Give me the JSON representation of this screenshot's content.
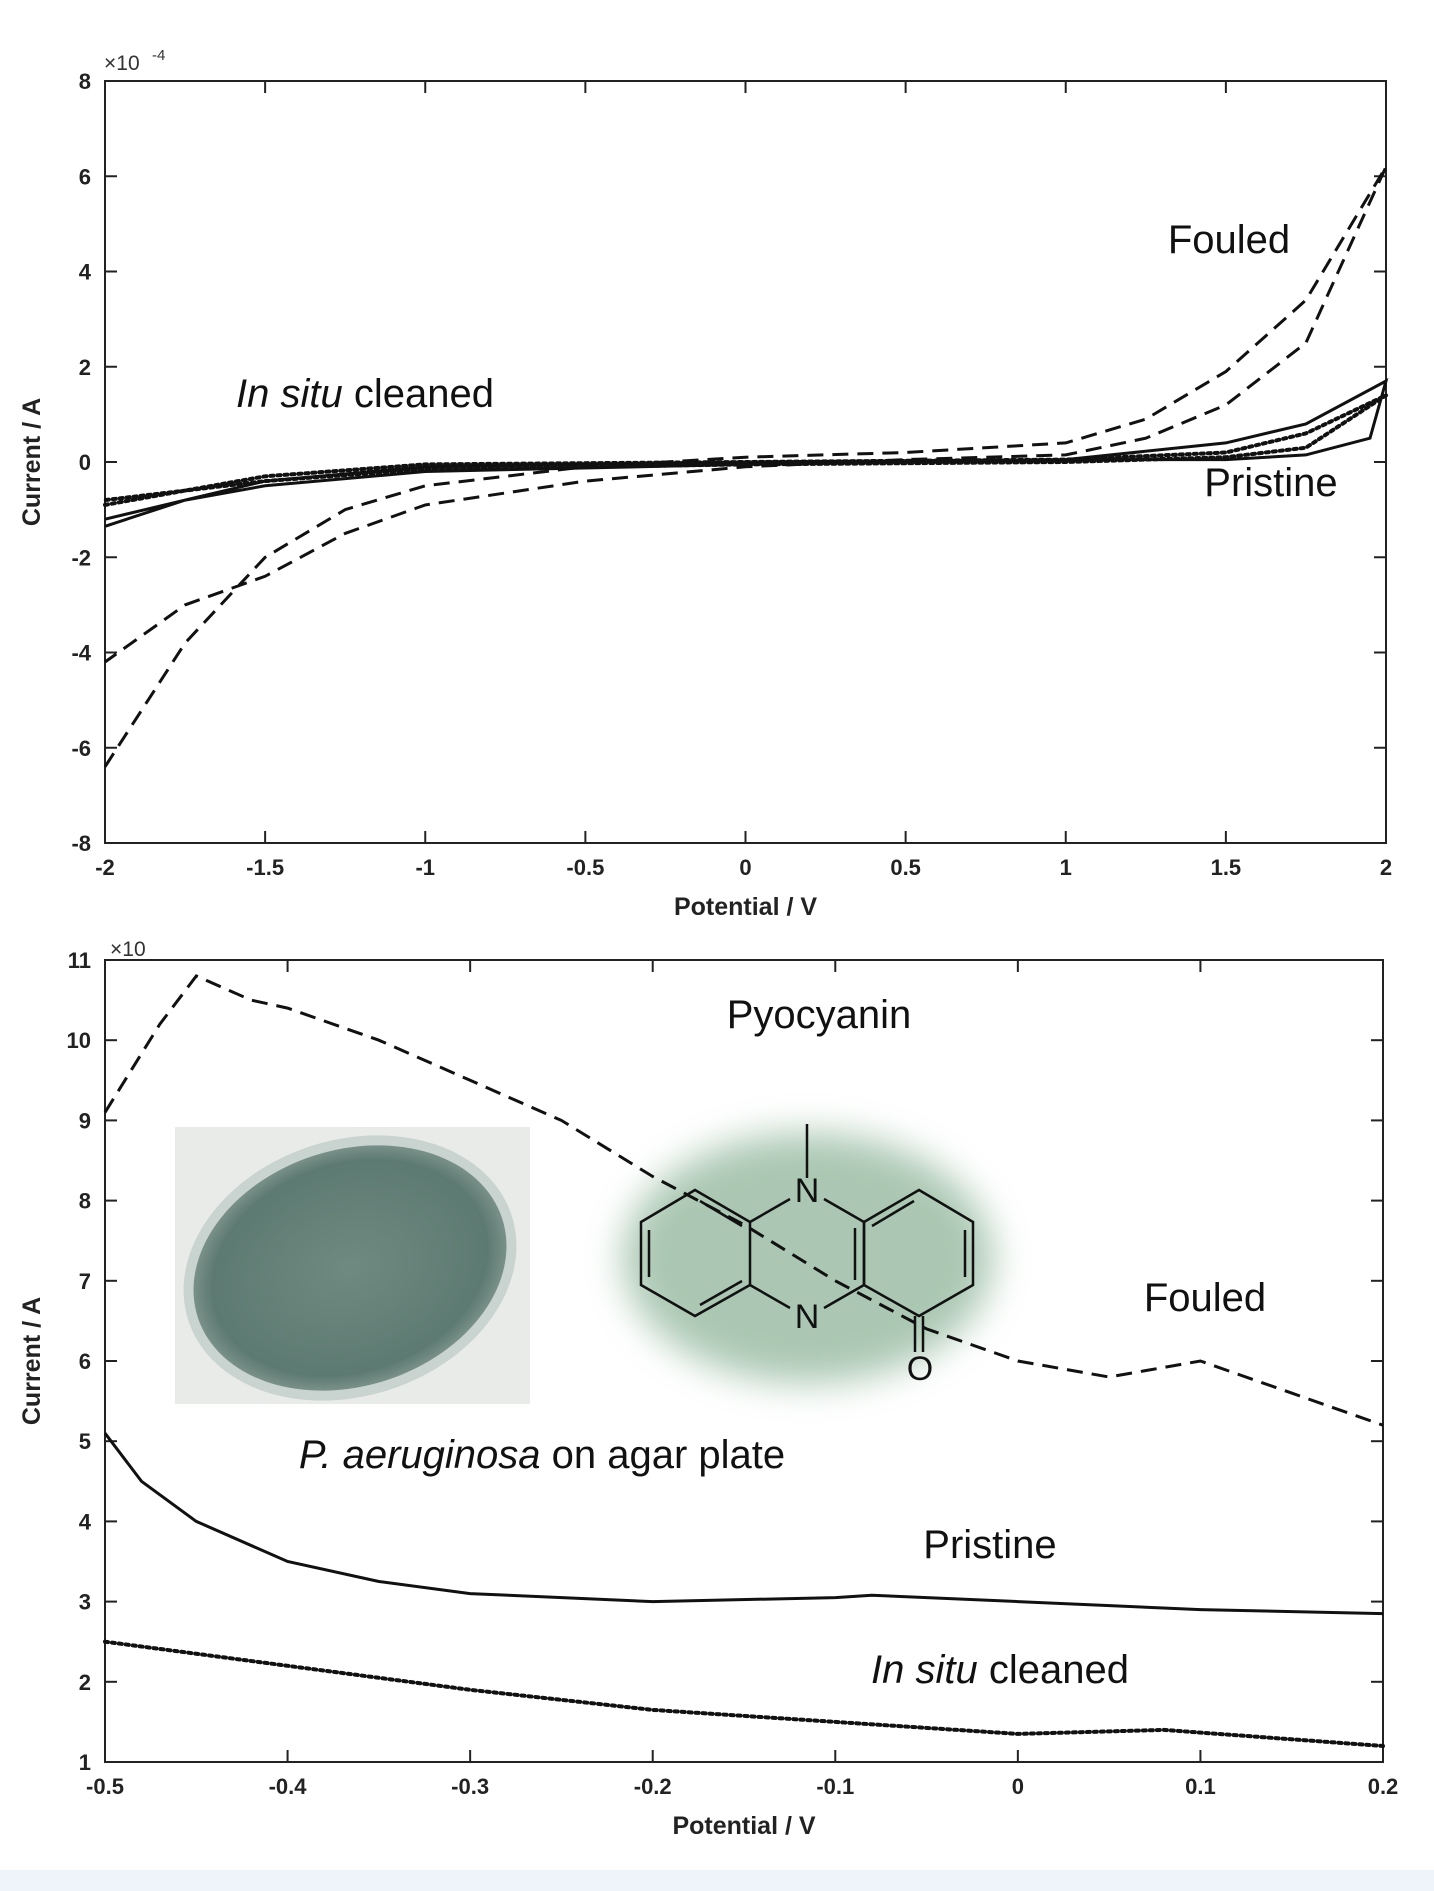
{
  "chart_data": [
    {
      "type": "line",
      "x_label": "Potential / V",
      "y_label": "Current / A",
      "y_multiplier": "×10",
      "y_exponent": "-4",
      "xlim": [
        -2,
        2
      ],
      "xticks": [
        -2,
        -1.5,
        -1,
        -0.5,
        0,
        0.5,
        1,
        1.5,
        2
      ],
      "ylim": [
        -8,
        8
      ],
      "yticks": [
        -8,
        -6,
        -4,
        -2,
        0,
        2,
        4,
        6,
        8
      ],
      "series": [
        {
          "name": "Fouled",
          "color": "#111111",
          "dash": "dashed",
          "x": [
            -2,
            -1.75,
            -1.5,
            -1.25,
            -1,
            -0.5,
            0,
            0.5,
            1,
            1.25,
            1.5,
            1.75,
            2,
            1.75,
            1.5,
            1.25,
            1,
            0.5,
            0,
            -0.5,
            -1,
            -1.25,
            -1.5,
            -1.75,
            -2
          ],
          "values": [
            -6.4,
            -3.8,
            -2.0,
            -1.0,
            -0.5,
            -0.1,
            0.1,
            0.2,
            0.4,
            0.9,
            1.9,
            3.4,
            6.2,
            2.5,
            1.2,
            0.5,
            0.15,
            0.05,
            -0.1,
            -0.4,
            -0.9,
            -1.5,
            -2.4,
            -3.0,
            -4.2
          ]
        },
        {
          "name": "Pristine",
          "color": "#111111",
          "dash": "solid",
          "x": [
            -2,
            -1.75,
            -1.5,
            -1,
            0,
            1,
            1.5,
            1.75,
            2,
            1.95,
            1.75,
            1.5,
            1,
            0,
            -1,
            -1.5,
            -1.75,
            -2
          ],
          "values": [
            -1.35,
            -0.8,
            -0.4,
            -0.1,
            0,
            0.05,
            0.4,
            0.8,
            1.7,
            0.5,
            0.15,
            0.05,
            0.05,
            -0.05,
            -0.2,
            -0.5,
            -0.8,
            -1.2
          ]
        },
        {
          "name": "In situ cleaned",
          "color": "#111111",
          "dash": "dotted",
          "x": [
            -2,
            -1.75,
            -1.5,
            -1,
            0,
            1,
            1.5,
            1.75,
            2,
            1.75,
            1.5,
            1,
            0,
            -1,
            -1.5,
            -2
          ],
          "values": [
            -0.9,
            -0.6,
            -0.3,
            -0.05,
            0,
            0.05,
            0.2,
            0.6,
            1.4,
            0.3,
            0.1,
            0,
            -0.05,
            -0.15,
            -0.4,
            -0.8
          ]
        }
      ]
    },
    {
      "type": "line",
      "x_label": "Potential / V",
      "y_label": "Current / A",
      "y_multiplier": "×10",
      "xlim": [
        -0.5,
        0.2
      ],
      "xticks": [
        -0.5,
        -0.4,
        -0.3,
        -0.2,
        -0.1,
        0,
        0.1,
        0.2
      ],
      "ylim": [
        1,
        11
      ],
      "yticks": [
        1,
        2,
        3,
        4,
        5,
        6,
        7,
        8,
        9,
        10,
        11
      ],
      "annotations": [
        "Pyocyanin",
        "P. aeruginosa on agar plate"
      ],
      "structure_labels": [
        "N",
        "N",
        "O"
      ],
      "series": [
        {
          "name": "Fouled",
          "color": "#111111",
          "dash": "dashed",
          "x": [
            -0.5,
            -0.47,
            -0.45,
            -0.42,
            -0.4,
            -0.35,
            -0.3,
            -0.25,
            -0.2,
            -0.15,
            -0.1,
            -0.05,
            0,
            0.05,
            0.1,
            0.15,
            0.2
          ],
          "values": [
            9.1,
            10.2,
            10.8,
            10.5,
            10.4,
            10.0,
            9.5,
            9.0,
            8.3,
            7.7,
            7.0,
            6.4,
            6.0,
            5.8,
            6.0,
            5.6,
            5.2
          ]
        },
        {
          "name": "Pristine",
          "color": "#111111",
          "dash": "solid",
          "x": [
            -0.5,
            -0.48,
            -0.45,
            -0.4,
            -0.35,
            -0.3,
            -0.2,
            -0.1,
            -0.08,
            0,
            0.1,
            0.2
          ],
          "values": [
            5.1,
            4.5,
            4.0,
            3.5,
            3.25,
            3.1,
            3.0,
            3.05,
            3.08,
            3.0,
            2.9,
            2.85
          ]
        },
        {
          "name": "In situ cleaned",
          "color": "#111111",
          "dash": "dotted",
          "x": [
            -0.5,
            -0.4,
            -0.3,
            -0.2,
            -0.1,
            0,
            0.08,
            0.2
          ],
          "values": [
            2.5,
            2.2,
            1.9,
            1.65,
            1.5,
            1.35,
            1.4,
            1.2
          ]
        }
      ]
    }
  ]
}
